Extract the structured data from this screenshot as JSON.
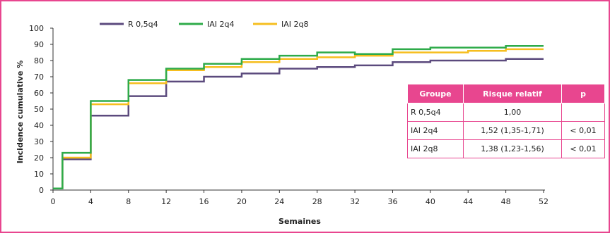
{
  "chart_data": {
    "type": "line",
    "step": true,
    "title": "",
    "xlabel": "Semaines",
    "ylabel": "Incidence cumulative %",
    "xlim": [
      0,
      52
    ],
    "ylim": [
      0,
      100
    ],
    "x_ticks": [
      "0",
      "4",
      "8",
      "12",
      "16",
      "20",
      "24",
      "28",
      "32",
      "36",
      "40",
      "44",
      "48",
      "52"
    ],
    "x_tick_values": [
      0,
      4,
      8,
      12,
      16,
      20,
      24,
      28,
      32,
      36,
      40,
      44,
      48,
      52
    ],
    "y_ticks": [
      "0",
      "10",
      "20",
      "30",
      "40",
      "50",
      "60",
      "70",
      "80",
      "90",
      "100"
    ],
    "y_tick_values": [
      0,
      10,
      20,
      30,
      40,
      50,
      60,
      70,
      80,
      90,
      100
    ],
    "grid": false,
    "legend_position": "top",
    "series": [
      {
        "name": "R 0,5q4",
        "color": "#5b4a7d",
        "x": [
          0,
          1,
          4,
          8,
          12,
          16,
          20,
          24,
          28,
          32,
          36,
          40,
          44,
          48,
          52
        ],
        "y": [
          1,
          19,
          46,
          58,
          67,
          70,
          72,
          75,
          76,
          77,
          79,
          80,
          80,
          81,
          81
        ]
      },
      {
        "name": "IAI 2q4",
        "color": "#2eab4a",
        "x": [
          0,
          1,
          4,
          8,
          12,
          16,
          20,
          24,
          28,
          32,
          36,
          40,
          44,
          48,
          52
        ],
        "y": [
          1,
          23,
          55,
          68,
          75,
          78,
          81,
          83,
          85,
          84,
          87,
          88,
          88,
          89,
          89
        ]
      },
      {
        "name": "IAI 2q8",
        "color": "#f6be1f",
        "x": [
          0,
          1,
          4,
          8,
          12,
          16,
          20,
          24,
          28,
          32,
          36,
          40,
          44,
          48,
          52
        ],
        "y": [
          1,
          20,
          53,
          66,
          74,
          76,
          79,
          81,
          82,
          83,
          85,
          85,
          86,
          87,
          87
        ]
      }
    ]
  },
  "table": {
    "headers": [
      "Groupe",
      "Risque relatif",
      "p"
    ],
    "header_color": "#e8468f",
    "rows": [
      {
        "group": "R 0,5q4",
        "rr": "1,00",
        "p": ""
      },
      {
        "group": "IAI 2q4",
        "rr": "1,52 (1,35-1,71)",
        "p": "< 0,01"
      },
      {
        "group": "IAI 2q8",
        "rr": "1,38 (1,23-1,56)",
        "p": "< 0,01"
      }
    ]
  },
  "colors": {
    "frame": "#e8468f",
    "axis": "#333333"
  }
}
